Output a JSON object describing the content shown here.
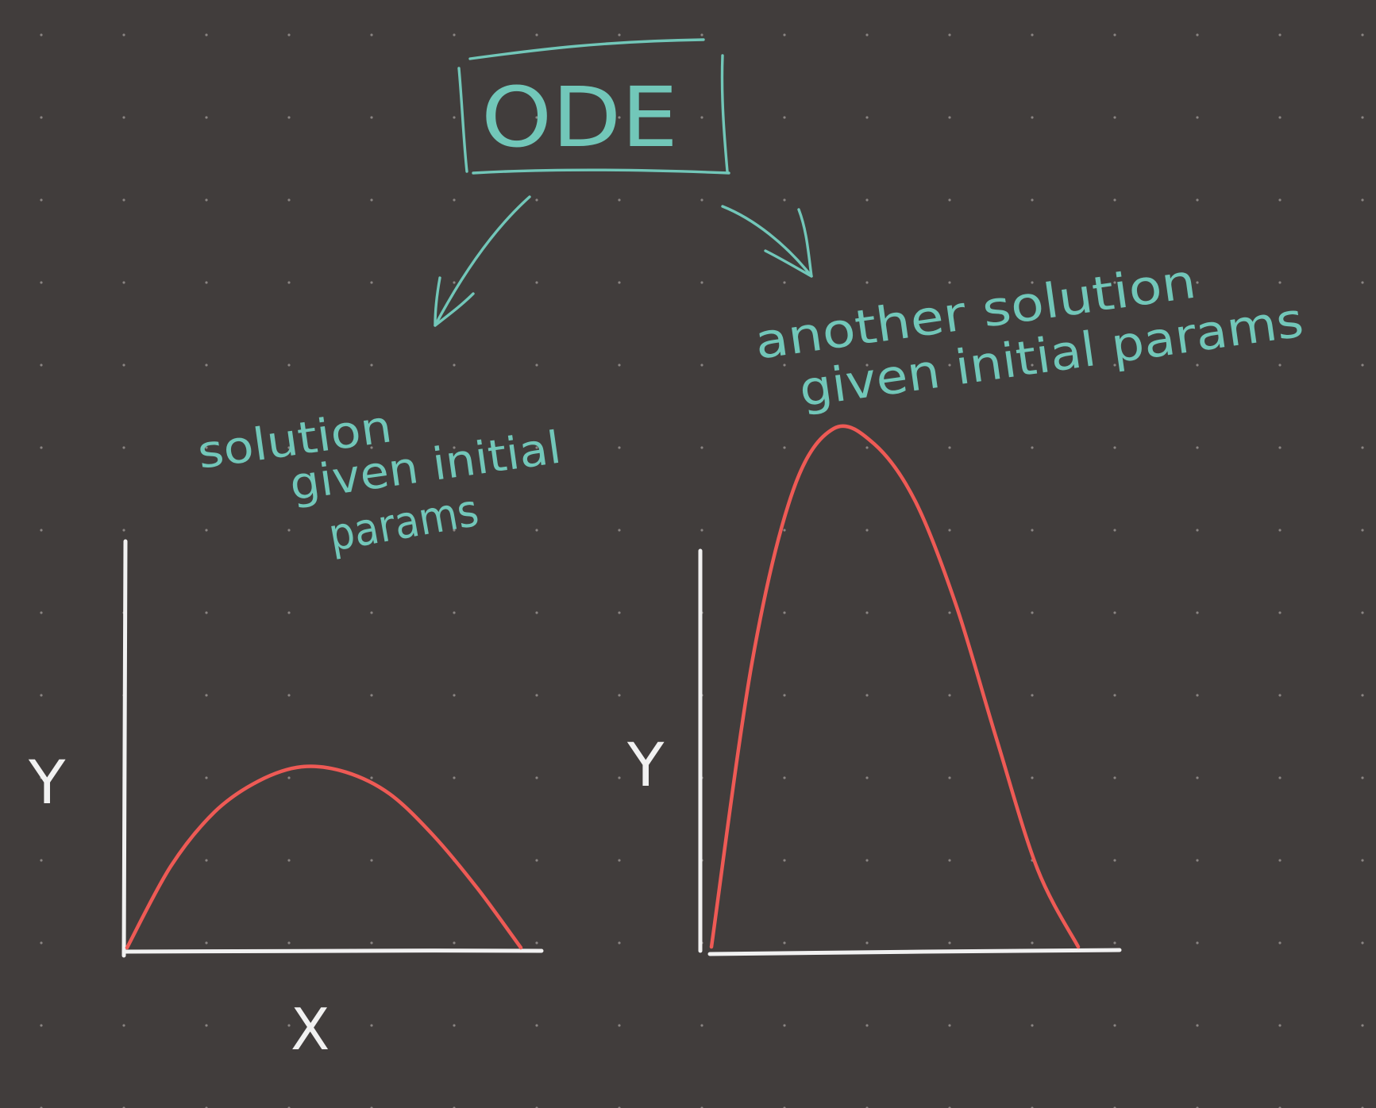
{
  "canvas": {
    "background_color": "#413d3c",
    "dot_color": "#8a8583",
    "ink_colors": {
      "note": "#72c7b9",
      "axes": "#f1f1f1",
      "curve": "#ee5a55"
    }
  },
  "title_box": {
    "label": "ODE"
  },
  "notes": {
    "left_line1": "solution",
    "left_line2": "given initial",
    "left_line3": "params",
    "right_line1": "another solution",
    "right_line2": "given initial params"
  },
  "chart_data": [
    {
      "type": "line",
      "title": "",
      "xlabel": "X",
      "ylabel": "Y",
      "series": [
        {
          "shape": "arch",
          "peak": "moderate",
          "values": [
            0,
            0.45,
            0.75,
            0.92,
            1.0,
            0.97,
            0.85,
            0.62,
            0.33,
            0
          ]
        }
      ],
      "axes": "left and bottom only",
      "grid": false
    },
    {
      "type": "line",
      "title": "",
      "xlabel": "",
      "ylabel": "Y",
      "series": [
        {
          "shape": "arch",
          "peak": "tall",
          "values": [
            0,
            0.55,
            0.88,
            1.0,
            0.97,
            0.86,
            0.66,
            0.4,
            0.15,
            0
          ]
        }
      ],
      "axes": "left and bottom only",
      "grid": false
    }
  ]
}
